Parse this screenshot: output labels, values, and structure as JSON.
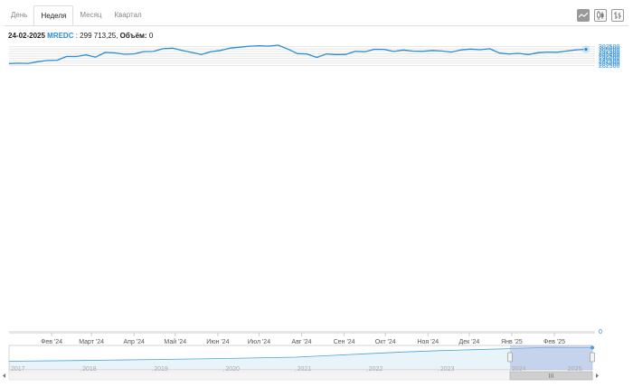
{
  "tabs": [
    {
      "label": "День",
      "active": false
    },
    {
      "label": "Неделя",
      "active": true
    },
    {
      "label": "Месяц",
      "active": false
    },
    {
      "label": "Квартал",
      "active": false
    }
  ],
  "toolbar": {
    "icons": [
      "line-chart-icon",
      "candlestick-icon",
      "ohlc-bar-icon"
    ]
  },
  "info": {
    "date": "24-02-2025",
    "ticker": "MREDC",
    "separator": " : ",
    "value": "299 713,25",
    "volume_label": "Объём:",
    "volume_value": "0"
  },
  "colors": {
    "line": "#2a8ed1",
    "axis_text": "#2a8ed1",
    "grid": "#e6e6e6",
    "navigator_mask": "#a7b9e0",
    "navigator_line": "#4aa3d8"
  },
  "chart_data": {
    "type": "line",
    "ylim": [
      -1500,
      306000
    ],
    "y_ticks": [
      0,
      282500,
      285000,
      287500,
      290000,
      292500,
      295000,
      297500,
      300000,
      302500
    ],
    "y_tick_labels": [
      "0",
      "282500",
      "285000",
      "287500",
      "290000",
      "292500",
      "295000",
      "297500",
      "300000",
      "302500"
    ],
    "x_ticks": [
      "Фев '24",
      "Март '24",
      "Апр '24",
      "Май '24",
      "Июн '24",
      "Июл '24",
      "Авг '24",
      "Сен '24",
      "Окт '24",
      "Ноя '24",
      "Дек '24",
      "Янв '25",
      "Фев '25"
    ],
    "x_tick_dates": [
      "2024-02-01",
      "2024-03-01",
      "2024-04-01",
      "2024-05-01",
      "2024-06-01",
      "2024-07-01",
      "2024-08-01",
      "2024-09-01",
      "2024-10-01",
      "2024-11-01",
      "2024-12-01",
      "2025-01-01",
      "2025-02-01"
    ],
    "x_range": [
      "2024-01-01",
      "2025-02-24"
    ],
    "grid": true,
    "series": [
      {
        "x": [
          "2024-01-01",
          "2024-01-08",
          "2024-01-15",
          "2024-01-22",
          "2024-01-29",
          "2024-02-05",
          "2024-02-12",
          "2024-02-19",
          "2024-02-26",
          "2024-03-04",
          "2024-03-11",
          "2024-03-18",
          "2024-03-25",
          "2024-04-01",
          "2024-04-08",
          "2024-04-15",
          "2024-04-22",
          "2024-04-29",
          "2024-05-06",
          "2024-05-13",
          "2024-05-20",
          "2024-05-27",
          "2024-06-03",
          "2024-06-10",
          "2024-06-17",
          "2024-06-24",
          "2024-07-01",
          "2024-07-08",
          "2024-07-15",
          "2024-07-22",
          "2024-07-29",
          "2024-08-05",
          "2024-08-12",
          "2024-08-19",
          "2024-08-26",
          "2024-09-02",
          "2024-09-09",
          "2024-09-16",
          "2024-09-23",
          "2024-09-30",
          "2024-10-07",
          "2024-10-14",
          "2024-10-21",
          "2024-10-28",
          "2024-11-04",
          "2024-11-11",
          "2024-11-18",
          "2024-11-25",
          "2024-12-02",
          "2024-12-09",
          "2024-12-16",
          "2024-12-23",
          "2024-12-30",
          "2025-01-06",
          "2025-01-13",
          "2025-01-20",
          "2025-01-27",
          "2025-02-03",
          "2025-02-10",
          "2025-02-17",
          "2025-02-24"
        ],
        "values": [
          284600,
          285000,
          284800,
          286600,
          287800,
          288100,
          292200,
          292100,
          293900,
          291400,
          296400,
          295900,
          294500,
          294900,
          297300,
          297400,
          300300,
          300900,
          298500,
          296400,
          294200,
          297300,
          298500,
          301000,
          302000,
          303000,
          303500,
          303100,
          304100,
          299900,
          295100,
          294800,
          291100,
          294800,
          294200,
          294300,
          297500,
          297200,
          299800,
          299700,
          297400,
          299000,
          297800,
          297500,
          298500,
          297900,
          296800,
          299100,
          299900,
          299300,
          300300,
          295700,
          294800,
          295400,
          294200,
          296100,
          296800,
          296600,
          297900,
          299200,
          299713.25
        ]
      }
    ],
    "navigator": {
      "x_labels": [
        "2017",
        "2018",
        "2019",
        "2020",
        "2021",
        "2022",
        "2023",
        "2024",
        "2025"
      ],
      "range_start": "2017-01-01",
      "range_end": "2025-02-24",
      "selected_from": "2024-01-01",
      "selected_to": "2025-02-24",
      "history": [
        {
          "x": "2017-01-01",
          "value": 100000
        },
        {
          "x": "2018-01-01",
          "value": 110000
        },
        {
          "x": "2019-01-01",
          "value": 125000
        },
        {
          "x": "2020-01-01",
          "value": 140000
        },
        {
          "x": "2021-01-01",
          "value": 160000
        },
        {
          "x": "2021-07-01",
          "value": 185000
        },
        {
          "x": "2022-01-01",
          "value": 210000
        },
        {
          "x": "2022-07-01",
          "value": 235000
        },
        {
          "x": "2023-01-01",
          "value": 255000
        },
        {
          "x": "2023-07-01",
          "value": 270000
        },
        {
          "x": "2024-01-01",
          "value": 284600
        },
        {
          "x": "2024-07-01",
          "value": 303000
        },
        {
          "x": "2025-02-24",
          "value": 299713.25
        }
      ]
    }
  }
}
